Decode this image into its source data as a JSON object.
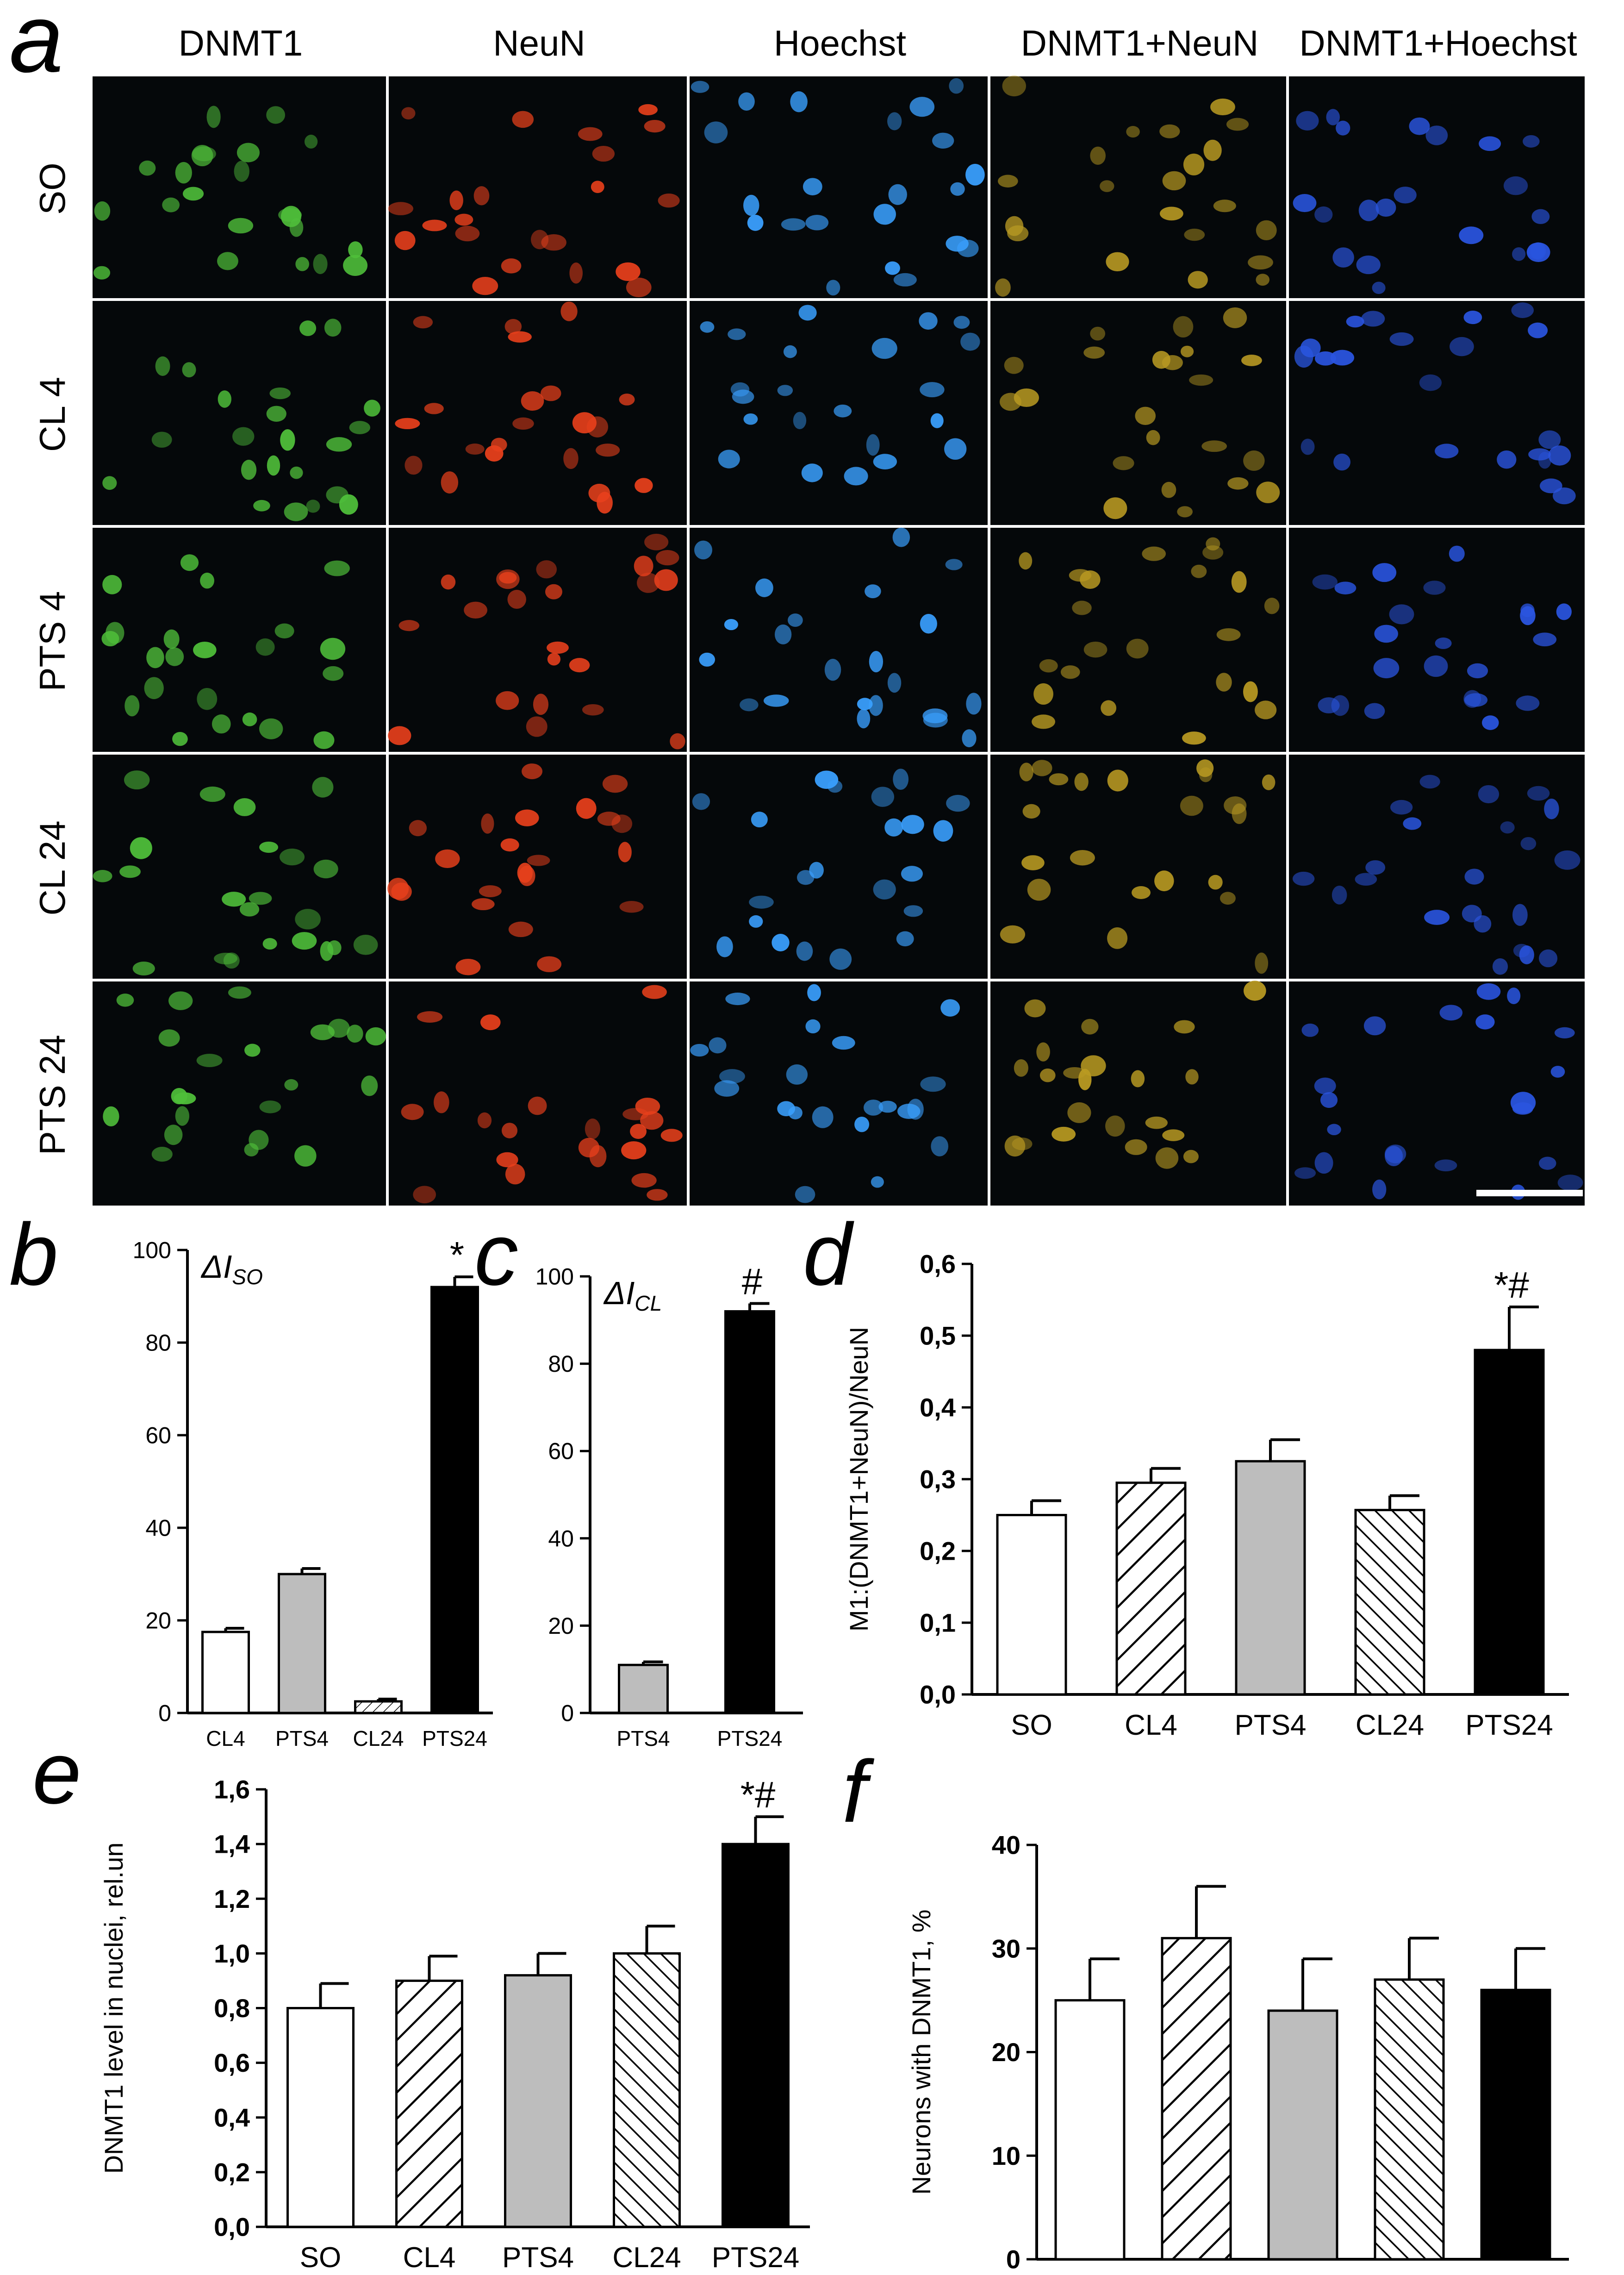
{
  "panel_a": {
    "letter": "a",
    "columns": [
      "DNMT1",
      "NeuN",
      "Hoechst",
      "DNMT1+NeuN",
      "DNMT1+Hoechst"
    ],
    "rows": [
      "SO",
      "CL 4",
      "PTS 4",
      "CL 24",
      "PTS 24"
    ],
    "channel_colors": {
      "DNMT1": "#4fbf3a",
      "NeuN": "#e8401c",
      "Hoechst": "#3aa0ff",
      "DNMT1+NeuN": "#b99a22",
      "DNMT1+Hoechst": "#2a55e0"
    },
    "scale_bar": true
  },
  "panel_labels": {
    "b": "b",
    "c": "c",
    "d": "d",
    "e": "e",
    "f": "f"
  },
  "chart_data": [
    {
      "panel": "b",
      "type": "bar",
      "title": "ΔI",
      "title_sub": "SO",
      "categories": [
        "CL4",
        "PTS4",
        "CL24",
        "PTS24"
      ],
      "values": [
        17.5,
        30,
        2.5,
        92
      ],
      "errors": [
        0.8,
        1.2,
        0.5,
        2.2
      ],
      "fills": [
        "white",
        "gray",
        "hatch",
        "black"
      ],
      "annotations": [
        "",
        "",
        "",
        "*"
      ],
      "ylim": [
        0,
        100
      ],
      "yticks": [
        "0",
        "20",
        "40",
        "60",
        "80",
        "100"
      ],
      "ylabel": ""
    },
    {
      "panel": "c",
      "type": "bar",
      "title": "ΔI",
      "title_sub": "CL",
      "categories": [
        "PTS4",
        "PTS24"
      ],
      "values": [
        11,
        92
      ],
      "errors": [
        0.7,
        1.8
      ],
      "fills": [
        "gray",
        "black"
      ],
      "annotations": [
        "",
        "#"
      ],
      "ylim": [
        0,
        100
      ],
      "yticks": [
        "0",
        "20",
        "40",
        "60",
        "80",
        "100"
      ],
      "ylabel": ""
    },
    {
      "panel": "d",
      "type": "bar",
      "categories": [
        "SO",
        "CL4",
        "PTS4",
        "CL24",
        "PTS24"
      ],
      "values": [
        0.25,
        0.295,
        0.325,
        0.257,
        0.48
      ],
      "errors": [
        0.02,
        0.02,
        0.03,
        0.02,
        0.06
      ],
      "fills": [
        "white",
        "hatch-fwd",
        "gray",
        "hatch-back",
        "black"
      ],
      "annotations": [
        "",
        "",
        "",
        "",
        "*#"
      ],
      "ylim": [
        0,
        0.6
      ],
      "yticks": [
        "0,0",
        "0,1",
        "0,2",
        "0,3",
        "0,4",
        "0,5",
        "0,6"
      ],
      "ylabel": "M1:(DNMT1+NeuN)/NeuN"
    },
    {
      "panel": "e",
      "type": "bar",
      "categories": [
        "SO",
        "CL4",
        "PTS4",
        "CL24",
        "PTS24"
      ],
      "values": [
        0.8,
        0.9,
        0.92,
        1.0,
        1.4
      ],
      "errors": [
        0.09,
        0.09,
        0.08,
        0.1,
        0.1
      ],
      "fills": [
        "white",
        "hatch-fwd",
        "gray",
        "hatch-back",
        "black"
      ],
      "annotations": [
        "",
        "",
        "",
        "",
        "*#"
      ],
      "ylim": [
        0,
        1.6
      ],
      "yticks": [
        "0,0",
        "0,2",
        "0,4",
        "0,6",
        "0,8",
        "1,0",
        "1,2",
        "1,4",
        "1,6"
      ],
      "ylabel": "DNMT1 level in nuclei, rel.un"
    },
    {
      "panel": "f",
      "type": "bar",
      "categories": [
        "SO",
        "CL4",
        "PTS4",
        "CL24",
        "PTS24"
      ],
      "values": [
        25,
        31,
        24,
        27,
        26
      ],
      "errors": [
        4,
        5,
        5,
        4,
        4
      ],
      "fills": [
        "white",
        "hatch-fwd",
        "gray",
        "hatch-back",
        "black"
      ],
      "annotations": [
        "",
        "",
        "",
        "",
        ""
      ],
      "ylim": [
        0,
        40
      ],
      "yticks": [
        "0",
        "10",
        "20",
        "30",
        "40"
      ],
      "ylabel": "Neurons with DNMT1, %"
    }
  ]
}
